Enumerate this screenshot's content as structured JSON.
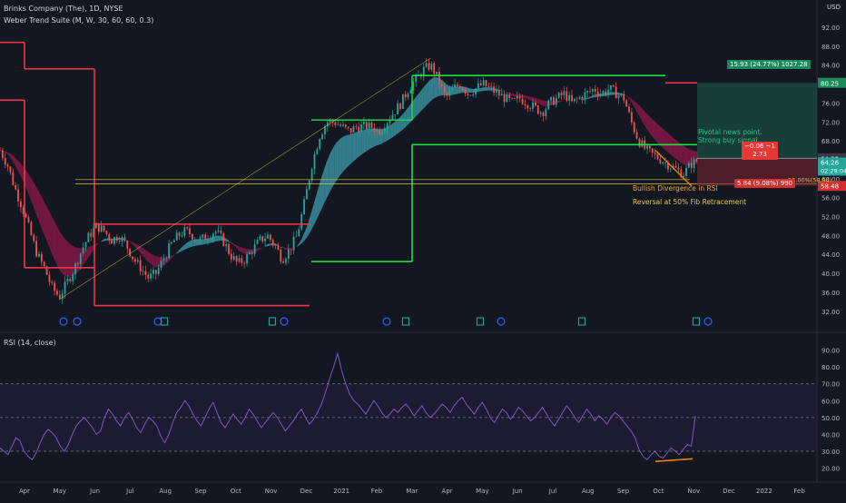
{
  "header": {
    "title": "Brinks Company (The), 1D, NYSE",
    "indicator": "Weber Trend Suite (M, W, 30, 60, 60, 0.3)",
    "currency": "USD",
    "rsi_title": "RSI (14, close)"
  },
  "annotations": {
    "target_box_label": "15.93 (24.77%) 1027.28",
    "stop_box_label": "5.84 (9.08%) 990",
    "mid_box_label": "−0.06 −1",
    "mid_box_value": "2.73",
    "pivotal_line1": "Pivotal news point.",
    "pivotal_line2": "Strong buy signal",
    "bullish_divergence": "Bullish Divergence in RSI",
    "reversal": "Reversal at 50% Fib Retracement",
    "fib_label": "50.00%(58.94)"
  },
  "price_labels": {
    "target": "80.25",
    "current": "64.26",
    "timer": "02:28:04",
    "entry": "64.32",
    "stop": "58.48"
  },
  "colors": {
    "background": "#131722",
    "up_candle": "#26a69a",
    "down_candle": "#ef5350",
    "red_level": "#f23645",
    "green_level": "#1fe03c",
    "fib_line": "#d8c23a",
    "cloud_pink": "#c2185b",
    "cloud_teal": "#4dd0e1",
    "rsi_line": "#7e57c2"
  },
  "chart_data": [
    {
      "type": "line",
      "name": "price",
      "x_ticks": [
        "Apr",
        "May",
        "Jun",
        "Jul",
        "Aug",
        "Sep",
        "Oct",
        "Nov",
        "Dec",
        "2021",
        "Feb",
        "Mar",
        "Apr",
        "May",
        "Jun",
        "Jul",
        "Aug",
        "Sep",
        "Oct",
        "Nov",
        "Dec",
        "2022",
        "Feb"
      ],
      "y_ticks": [
        "92.00",
        "88.00",
        "84.00",
        "80.25",
        "76.00",
        "72.00",
        "68.00",
        "64.32",
        "60.00",
        "56.00",
        "52.00",
        "48.00",
        "44.00",
        "40.00",
        "36.00",
        "32.00"
      ],
      "ylim": [
        31,
        92
      ],
      "close_path": [
        [
          0,
          66
        ],
        [
          3,
          63
        ],
        [
          6,
          58
        ],
        [
          9,
          54
        ],
        [
          12,
          49
        ],
        [
          15,
          44
        ],
        [
          18,
          41
        ],
        [
          21,
          37
        ],
        [
          24,
          35
        ],
        [
          27,
          38
        ],
        [
          30,
          41
        ],
        [
          33,
          45
        ],
        [
          36,
          48
        ],
        [
          39,
          50
        ],
        [
          42,
          49
        ],
        [
          45,
          47
        ],
        [
          48,
          48
        ],
        [
          51,
          46
        ],
        [
          54,
          43
        ],
        [
          57,
          41
        ],
        [
          60,
          39
        ],
        [
          63,
          40
        ],
        [
          66,
          43
        ],
        [
          69,
          46
        ],
        [
          72,
          48
        ],
        [
          75,
          49
        ],
        [
          78,
          48
        ],
        [
          81,
          47
        ],
        [
          84,
          48
        ],
        [
          87,
          49
        ],
        [
          90,
          47
        ],
        [
          93,
          44
        ],
        [
          96,
          42
        ],
        [
          99,
          43
        ],
        [
          102,
          45
        ],
        [
          105,
          47
        ],
        [
          108,
          48
        ],
        [
          111,
          46
        ],
        [
          114,
          43
        ],
        [
          117,
          45
        ],
        [
          120,
          48
        ],
        [
          123,
          55
        ],
        [
          126,
          63
        ],
        [
          129,
          69
        ],
        [
          132,
          72
        ],
        [
          135,
          72
        ],
        [
          138,
          71
        ],
        [
          141,
          70
        ],
        [
          144,
          71
        ],
        [
          147,
          71
        ],
        [
          150,
          71
        ],
        [
          153,
          70
        ],
        [
          156,
          72
        ],
        [
          159,
          74
        ],
        [
          162,
          76
        ],
        [
          165,
          79
        ],
        [
          168,
          81
        ],
        [
          171,
          83
        ],
        [
          174,
          84
        ],
        [
          177,
          81
        ],
        [
          180,
          77
        ],
        [
          183,
          79
        ],
        [
          186,
          80
        ],
        [
          189,
          78
        ],
        [
          192,
          79
        ],
        [
          195,
          80
        ],
        [
          198,
          79
        ],
        [
          201,
          78
        ],
        [
          204,
          77
        ],
        [
          207,
          76
        ],
        [
          210,
          77
        ],
        [
          213,
          76
        ],
        [
          216,
          75
        ],
        [
          219,
          74
        ],
        [
          222,
          76
        ],
        [
          225,
          77
        ],
        [
          228,
          78
        ],
        [
          231,
          76
        ],
        [
          234,
          77
        ],
        [
          237,
          78
        ],
        [
          240,
          79
        ],
        [
          243,
          78
        ],
        [
          246,
          79
        ],
        [
          249,
          78
        ],
        [
          252,
          77
        ],
        [
          255,
          72
        ],
        [
          258,
          68
        ],
        [
          261,
          66
        ],
        [
          264,
          65
        ],
        [
          267,
          64
        ],
        [
          270,
          63
        ],
        [
          273,
          62
        ],
        [
          276,
          61
        ],
        [
          279,
          63
        ],
        [
          282,
          64
        ]
      ],
      "levels": {
        "red_upper_start": 88.8,
        "red_step_1": 83.2,
        "red_step_2": 76.6,
        "red_mid": 50.4,
        "red_low": 33.2,
        "red_left_low": 41.2,
        "red_target": 80.25,
        "green_top": 81.8,
        "green_mid": 67.2,
        "green_low": 42.5,
        "green_step": 72.4,
        "fib_50": 58.94,
        "fib_upper": 59.8,
        "entry": 64.32,
        "stop": 58.48
      }
    },
    {
      "type": "line",
      "name": "RSI",
      "y_ticks": [
        "90.00",
        "80.00",
        "70.00",
        "60.00",
        "50.00",
        "40.00",
        "30.00",
        "20.00"
      ],
      "ylim": [
        16,
        93
      ],
      "bands": [
        30,
        50,
        70
      ],
      "values": [
        32,
        30,
        28,
        33,
        38,
        36,
        30,
        27,
        25,
        29,
        35,
        40,
        43,
        41,
        38,
        33,
        30,
        34,
        40,
        45,
        48,
        50,
        47,
        44,
        40,
        42,
        50,
        55,
        52,
        48,
        45,
        50,
        53,
        49,
        44,
        41,
        46,
        50,
        48,
        45,
        39,
        35,
        40,
        47,
        53,
        56,
        60,
        57,
        52,
        48,
        45,
        50,
        55,
        59,
        53,
        47,
        44,
        48,
        52,
        49,
        46,
        50,
        55,
        52,
        48,
        44,
        47,
        50,
        53,
        50,
        46,
        42,
        45,
        48,
        52,
        55,
        50,
        46,
        49,
        53,
        58,
        65,
        73,
        80,
        88,
        78,
        70,
        64,
        60,
        58,
        55,
        52,
        56,
        60,
        57,
        53,
        50,
        52,
        55,
        53,
        56,
        58,
        55,
        51,
        54,
        57,
        53,
        50,
        52,
        55,
        58,
        56,
        53,
        57,
        60,
        62,
        58,
        55,
        52,
        56,
        59,
        55,
        50,
        47,
        51,
        55,
        53,
        49,
        52,
        56,
        54,
        51,
        48,
        50,
        53,
        56,
        52,
        48,
        45,
        49,
        53,
        57,
        54,
        50,
        47,
        51,
        55,
        52,
        48,
        51,
        49,
        46,
        50,
        53,
        51,
        48,
        45,
        42,
        38,
        31,
        27,
        25,
        28,
        30,
        27,
        26,
        29,
        32,
        30,
        28,
        31,
        34,
        33,
        51
      ]
    }
  ]
}
